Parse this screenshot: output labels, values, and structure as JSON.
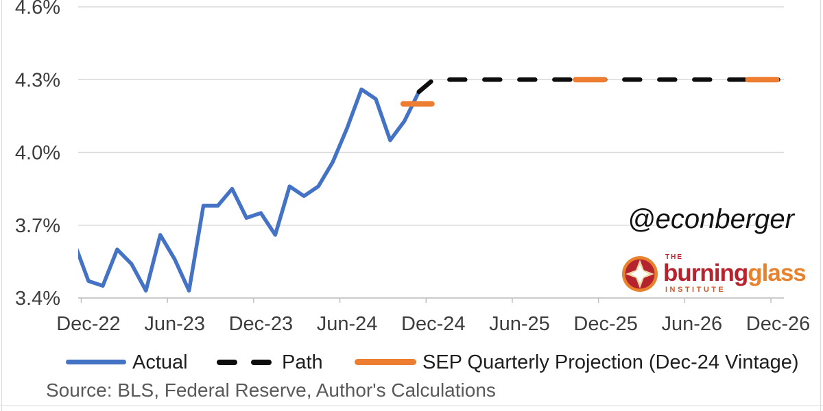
{
  "source": "Source: BLS, Federal Reserve, Author's Calculations",
  "annotations": {
    "watermark": "@econberger"
  },
  "logo": {
    "the": "THE",
    "burning": "burning",
    "glass": "glass",
    "institute": "INSTITUTE"
  },
  "legend": {
    "items": [
      {
        "label": "Actual",
        "swatch": "solid-line",
        "color": "#4472C4"
      },
      {
        "label": "Path",
        "swatch": "dashed-line",
        "color": "#0d0d0d"
      },
      {
        "label": "SEP Quarterly Projection (Dec-24 Vintage)",
        "swatch": "solid-line",
        "color": "#ED7D31"
      }
    ]
  },
  "chart_data": {
    "type": "line",
    "title": "",
    "xlabel": "",
    "ylabel": "",
    "grid": true,
    "legend_position": "bottom",
    "y_axis": {
      "min": 3.4,
      "max": 4.6,
      "step": 0.3,
      "tick_labels": [
        "3.4%",
        "3.7%",
        "4.0%",
        "4.3%",
        "4.6%"
      ]
    },
    "x_axis": {
      "tick_labels": [
        "Dec-22",
        "Jun-23",
        "Dec-23",
        "Jun-24",
        "Dec-24",
        "Jun-25",
        "Dec-25",
        "Jun-26",
        "Dec-26"
      ]
    },
    "series": [
      {
        "name": "Actual",
        "color": "#4472C4",
        "style": "solid",
        "months": [
          "Nov-22",
          "Dec-22",
          "Jan-23",
          "Feb-23",
          "Mar-23",
          "Apr-23",
          "May-23",
          "Jun-23",
          "Jul-23",
          "Aug-23",
          "Sep-23",
          "Oct-23",
          "Nov-23",
          "Dec-23",
          "Jan-24",
          "Feb-24",
          "Mar-24",
          "Apr-24",
          "May-24",
          "Jun-24",
          "Jul-24",
          "Aug-24",
          "Sep-24",
          "Oct-24",
          "Nov-24"
        ],
        "values": [
          3.63,
          3.47,
          3.45,
          3.6,
          3.54,
          3.43,
          3.66,
          3.56,
          3.43,
          3.78,
          3.78,
          3.85,
          3.73,
          3.75,
          3.66,
          3.86,
          3.82,
          3.86,
          3.96,
          4.1,
          4.26,
          4.22,
          4.05,
          4.13,
          4.25
        ]
      },
      {
        "name": "Path",
        "color": "#0d0d0d",
        "style": "dashed",
        "points": [
          {
            "month": "Nov-24",
            "value": 4.25
          },
          {
            "month": "Dec-24",
            "value": 4.3
          },
          {
            "month": "Dec-26",
            "value": 4.3
          }
        ]
      },
      {
        "name": "SEP Quarterly Projection (Dec-24 Vintage)",
        "color": "#ED7D31",
        "style": "segments",
        "segments": [
          {
            "quarter": "2024-Q4",
            "from": "Oct-24",
            "to": "Dec-24",
            "value": 4.2
          },
          {
            "quarter": "2025-Q4",
            "from": "Oct-25",
            "to": "Dec-25",
            "value": 4.3
          },
          {
            "quarter": "2026-Q4",
            "from": "Oct-26",
            "to": "Dec-26",
            "value": 4.3
          }
        ]
      }
    ]
  }
}
